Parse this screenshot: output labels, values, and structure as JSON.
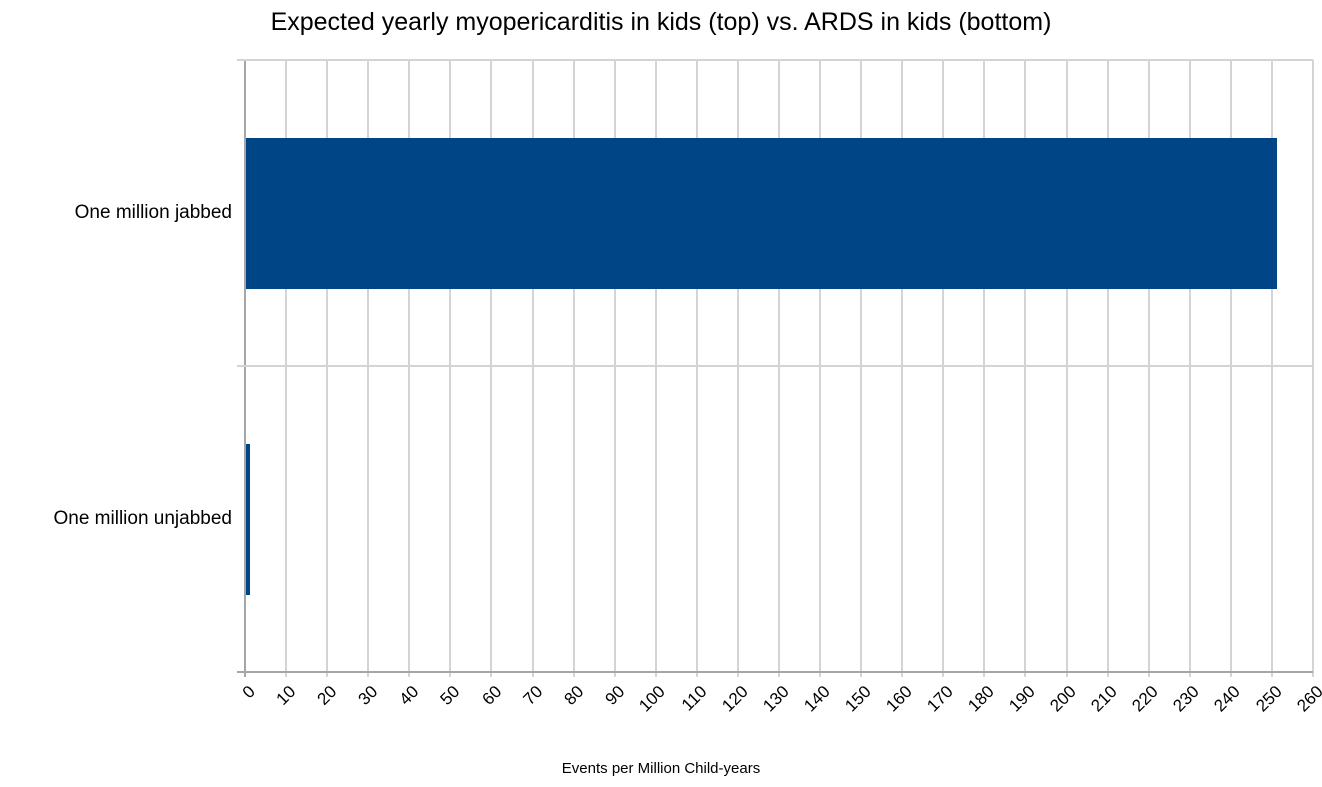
{
  "chart_data": {
    "type": "bar",
    "orientation": "horizontal",
    "title": "Expected yearly myopericarditis in kids (top) vs. ARDS in kids (bottom)",
    "xlabel": "Events per Million Child-years",
    "ylabel": "",
    "categories": [
      "One million jabbed",
      "One million unjabbed"
    ],
    "values": [
      251,
      1
    ],
    "xlim": [
      0,
      260
    ],
    "xticks": [
      0,
      10,
      20,
      30,
      40,
      50,
      60,
      70,
      80,
      90,
      100,
      110,
      120,
      130,
      140,
      150,
      160,
      170,
      180,
      190,
      200,
      210,
      220,
      230,
      240,
      250,
      260
    ],
    "tick_label_rotation_deg": -45,
    "grid": true,
    "legend": "none",
    "colors": {
      "bar": "#004586",
      "gridline": "#d4d4d4",
      "axis": "#a6a6a6",
      "text": "#000000",
      "background": "#ffffff"
    }
  }
}
